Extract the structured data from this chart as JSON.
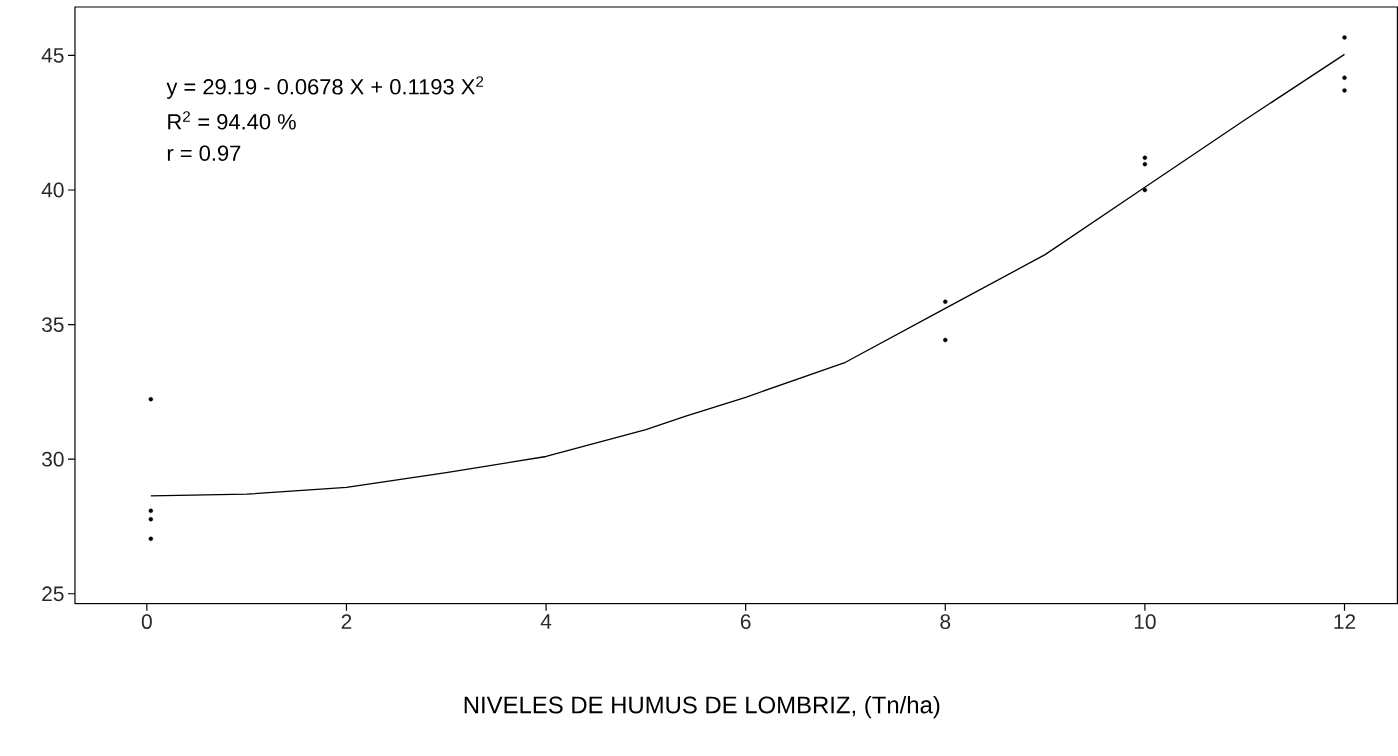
{
  "chart_data": {
    "type": "scatter",
    "xlabel": "NIVELES DE HUMUS DE LOMBRIZ, (Tn/ha)",
    "annotations": [
      "y  =  29.19 - 0.0678 X + 0.1193 X$^{2}$",
      "R$^{2}$ = 94.40 %",
      "r = 0.97"
    ],
    "xlim": [
      -0.72,
      12.53
    ],
    "ylim": [
      24.63,
      46.8
    ],
    "xticks": [
      0,
      2,
      4,
      6,
      8,
      10,
      12
    ],
    "yticks": [
      25,
      30,
      35,
      40,
      45
    ],
    "series": [
      {
        "color": "#000000",
        "x": [
          0.04,
          0.04,
          0.04,
          0.04,
          8,
          8,
          10,
          10,
          10,
          12,
          12,
          12
        ],
        "values": [
          32.23,
          28.08,
          27.77,
          27.04,
          35.85,
          34.43,
          41.2,
          40.96,
          40.0,
          45.67,
          44.17,
          43.7
        ]
      },
      {
        "type": "line",
        "color": "#000000",
        "line_style": "solid",
        "x": [
          0.04,
          1,
          2,
          3,
          4,
          5,
          5.4,
          6,
          7,
          8,
          9,
          10,
          11,
          12
        ],
        "values": [
          28.64,
          28.7,
          28.95,
          29.5,
          30.1,
          31.1,
          31.6,
          32.3,
          33.6,
          35.6,
          37.6,
          40.1,
          42.6,
          45.04
        ]
      }
    ]
  }
}
